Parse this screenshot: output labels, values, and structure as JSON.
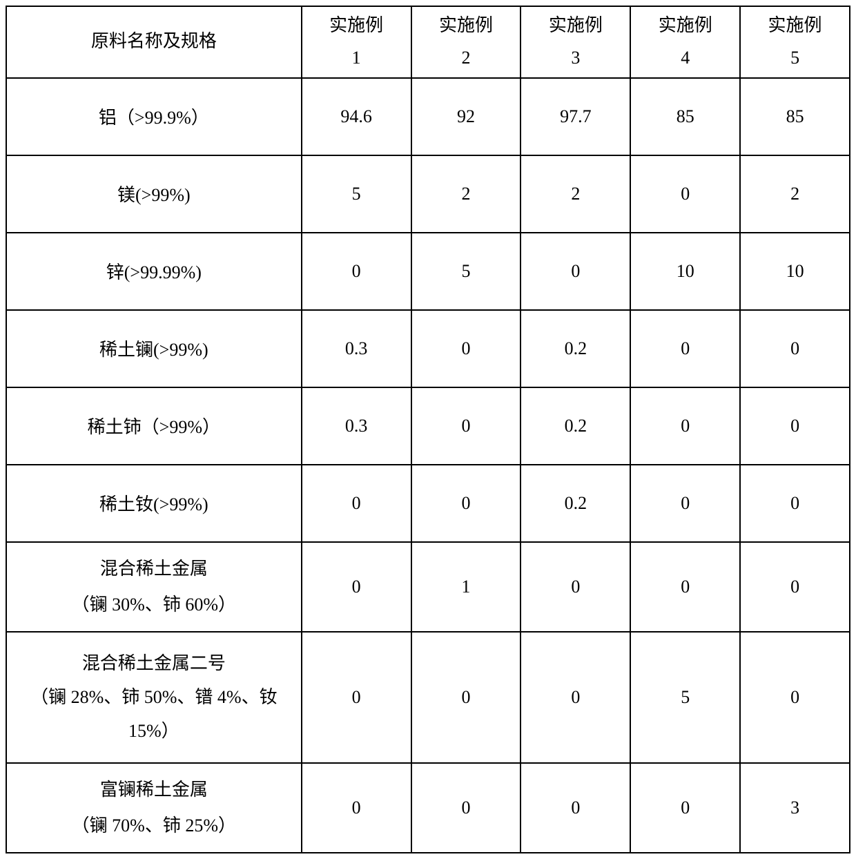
{
  "table": {
    "header": {
      "label": "原料名称及规格",
      "col1_line1": "实施例",
      "col1_line2": "1",
      "col2_line1": "实施例",
      "col2_line2": "2",
      "col3_line1": "实施例",
      "col3_line2": "3",
      "col4_line1": "实施例",
      "col4_line2": "4",
      "col5_line1": "实施例",
      "col5_line2": "5"
    },
    "rows": [
      {
        "label": "铝（>99.9%）",
        "v1": "94.6",
        "v2": "92",
        "v3": "97.7",
        "v4": "85",
        "v5": "85"
      },
      {
        "label": "镁(>99%)",
        "v1": "5",
        "v2": "2",
        "v3": "2",
        "v4": "0",
        "v5": "2"
      },
      {
        "label": "锌(>99.99%)",
        "v1": "0",
        "v2": "5",
        "v3": "0",
        "v4": "10",
        "v5": "10"
      },
      {
        "label": "稀土镧(>99%)",
        "v1": "0.3",
        "v2": "0",
        "v3": "0.2",
        "v4": "0",
        "v5": "0"
      },
      {
        "label": "稀土铈（>99%）",
        "v1": "0.3",
        "v2": "0",
        "v3": "0.2",
        "v4": "0",
        "v5": "0"
      },
      {
        "label": "稀土钕(>99%)",
        "v1": "0",
        "v2": "0",
        "v3": "0.2",
        "v4": "0",
        "v5": "0"
      },
      {
        "label_line1": "混合稀土金属",
        "label_line2": "（镧 30%、铈 60%）",
        "v1": "0",
        "v2": "1",
        "v3": "0",
        "v4": "0",
        "v5": "0"
      },
      {
        "label_line1": "混合稀土金属二号",
        "label_line2": "（镧 28%、铈 50%、镨 4%、钕",
        "label_line3": "15%）",
        "v1": "0",
        "v2": "0",
        "v3": "0",
        "v4": "5",
        "v5": "0"
      },
      {
        "label_line1": "富镧稀土金属",
        "label_line2": "（镧 70%、铈 25%）",
        "v1": "0",
        "v2": "0",
        "v3": "0",
        "v4": "0",
        "v5": "3"
      }
    ],
    "style": {
      "border_color": "#000000",
      "background_color": "#ffffff",
      "text_color": "#000000",
      "font_family": "SimSun",
      "header_fontsize": 26,
      "cell_fontsize": 26,
      "border_width": 2,
      "col_label_width_pct": 35,
      "col_data_width_pct": 13,
      "row_height_standard": 112,
      "row_height_header": 100,
      "row_height_tall": 130,
      "row_height_triple": 190
    }
  }
}
